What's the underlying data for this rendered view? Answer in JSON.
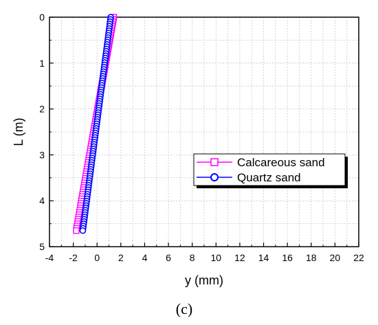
{
  "chart_data": {
    "type": "scatter",
    "xlabel": "y (mm)",
    "ylabel": "L (m)",
    "caption": "(c)",
    "xlim": [
      -4,
      22
    ],
    "ylim": [
      5,
      0
    ],
    "y_axis_inverted": true,
    "xticks": [
      "-4",
      "-2",
      "0",
      "2",
      "4",
      "6",
      "8",
      "10",
      "12",
      "14",
      "16",
      "18",
      "20",
      "22"
    ],
    "yticks": [
      "0",
      "1",
      "2",
      "3",
      "4",
      "5"
    ],
    "grid": "dashed minor and major",
    "legend_position": "center-right",
    "series": [
      {
        "name": "Calcareous sand",
        "marker": "square",
        "color": "#ff00ff",
        "x_at_top": 1.4,
        "x_at_bottom": -1.75,
        "L_top": 0,
        "L_bottom": 4.65
      },
      {
        "name": "Quartz sand",
        "marker": "circle",
        "color": "#0000ff",
        "x_at_top": 1.15,
        "x_at_bottom": -1.2,
        "L_top": 0,
        "L_bottom": 4.65
      }
    ]
  }
}
